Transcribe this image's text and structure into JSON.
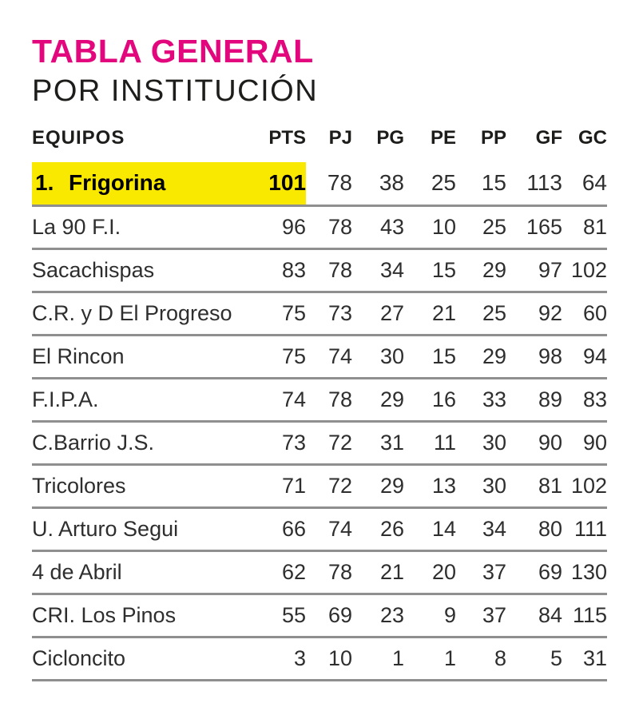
{
  "title": {
    "text": "TABLA GENERAL",
    "color": "#e2077d"
  },
  "subtitle": {
    "text": "POR INSTITUCIÓN"
  },
  "table": {
    "highlight_color": "#f9e800",
    "columns": [
      {
        "key": "team",
        "label": "EQUIPOS"
      },
      {
        "key": "pts",
        "label": "PTS"
      },
      {
        "key": "pj",
        "label": "PJ"
      },
      {
        "key": "pg",
        "label": "PG"
      },
      {
        "key": "pe",
        "label": "PE"
      },
      {
        "key": "pp",
        "label": "PP"
      },
      {
        "key": "gf",
        "label": "GF"
      },
      {
        "key": "gc",
        "label": "GC"
      }
    ],
    "rows": [
      {
        "rank": "1.",
        "team": "Frigorina",
        "pts": "101",
        "pj": "78",
        "pg": "38",
        "pe": "25",
        "pp": "15",
        "gf": "113",
        "gc": "64",
        "highlighted": true
      },
      {
        "rank": "",
        "team": "La 90 F.I.",
        "pts": "96",
        "pj": "78",
        "pg": "43",
        "pe": "10",
        "pp": "25",
        "gf": "165",
        "gc": "81",
        "highlighted": false
      },
      {
        "rank": "",
        "team": "Sacachispas",
        "pts": "83",
        "pj": "78",
        "pg": "34",
        "pe": "15",
        "pp": "29",
        "gf": "97",
        "gc": "102",
        "highlighted": false
      },
      {
        "rank": "",
        "team": "C.R. y D El Progreso",
        "pts": "75",
        "pj": "73",
        "pg": "27",
        "pe": "21",
        "pp": "25",
        "gf": "92",
        "gc": "60",
        "highlighted": false
      },
      {
        "rank": "",
        "team": "El Rincon",
        "pts": "75",
        "pj": "74",
        "pg": "30",
        "pe": "15",
        "pp": "29",
        "gf": "98",
        "gc": "94",
        "highlighted": false
      },
      {
        "rank": "",
        "team": "F.I.P.A.",
        "pts": "74",
        "pj": "78",
        "pg": "29",
        "pe": "16",
        "pp": "33",
        "gf": "89",
        "gc": "83",
        "highlighted": false
      },
      {
        "rank": "",
        "team": "C.Barrio J.S.",
        "pts": "73",
        "pj": "72",
        "pg": "31",
        "pe": "11",
        "pp": "30",
        "gf": "90",
        "gc": "90",
        "highlighted": false
      },
      {
        "rank": "",
        "team": "Tricolores",
        "pts": "71",
        "pj": "72",
        "pg": "29",
        "pe": "13",
        "pp": "30",
        "gf": "81",
        "gc": "102",
        "highlighted": false
      },
      {
        "rank": "",
        "team": "U. Arturo Segui",
        "pts": "66",
        "pj": "74",
        "pg": "26",
        "pe": "14",
        "pp": "34",
        "gf": "80",
        "gc": "111",
        "highlighted": false
      },
      {
        "rank": "",
        "team": "4 de Abril",
        "pts": "62",
        "pj": "78",
        "pg": "21",
        "pe": "20",
        "pp": "37",
        "gf": "69",
        "gc": "130",
        "highlighted": false
      },
      {
        "rank": "",
        "team": "CRI. Los Pinos",
        "pts": "55",
        "pj": "69",
        "pg": "23",
        "pe": "9",
        "pp": "37",
        "gf": "84",
        "gc": "115",
        "highlighted": false
      },
      {
        "rank": "",
        "team": "Cicloncito",
        "pts": "3",
        "pj": "10",
        "pg": "1",
        "pe": "1",
        "pp": "8",
        "gf": "5",
        "gc": "31",
        "highlighted": false
      }
    ]
  }
}
